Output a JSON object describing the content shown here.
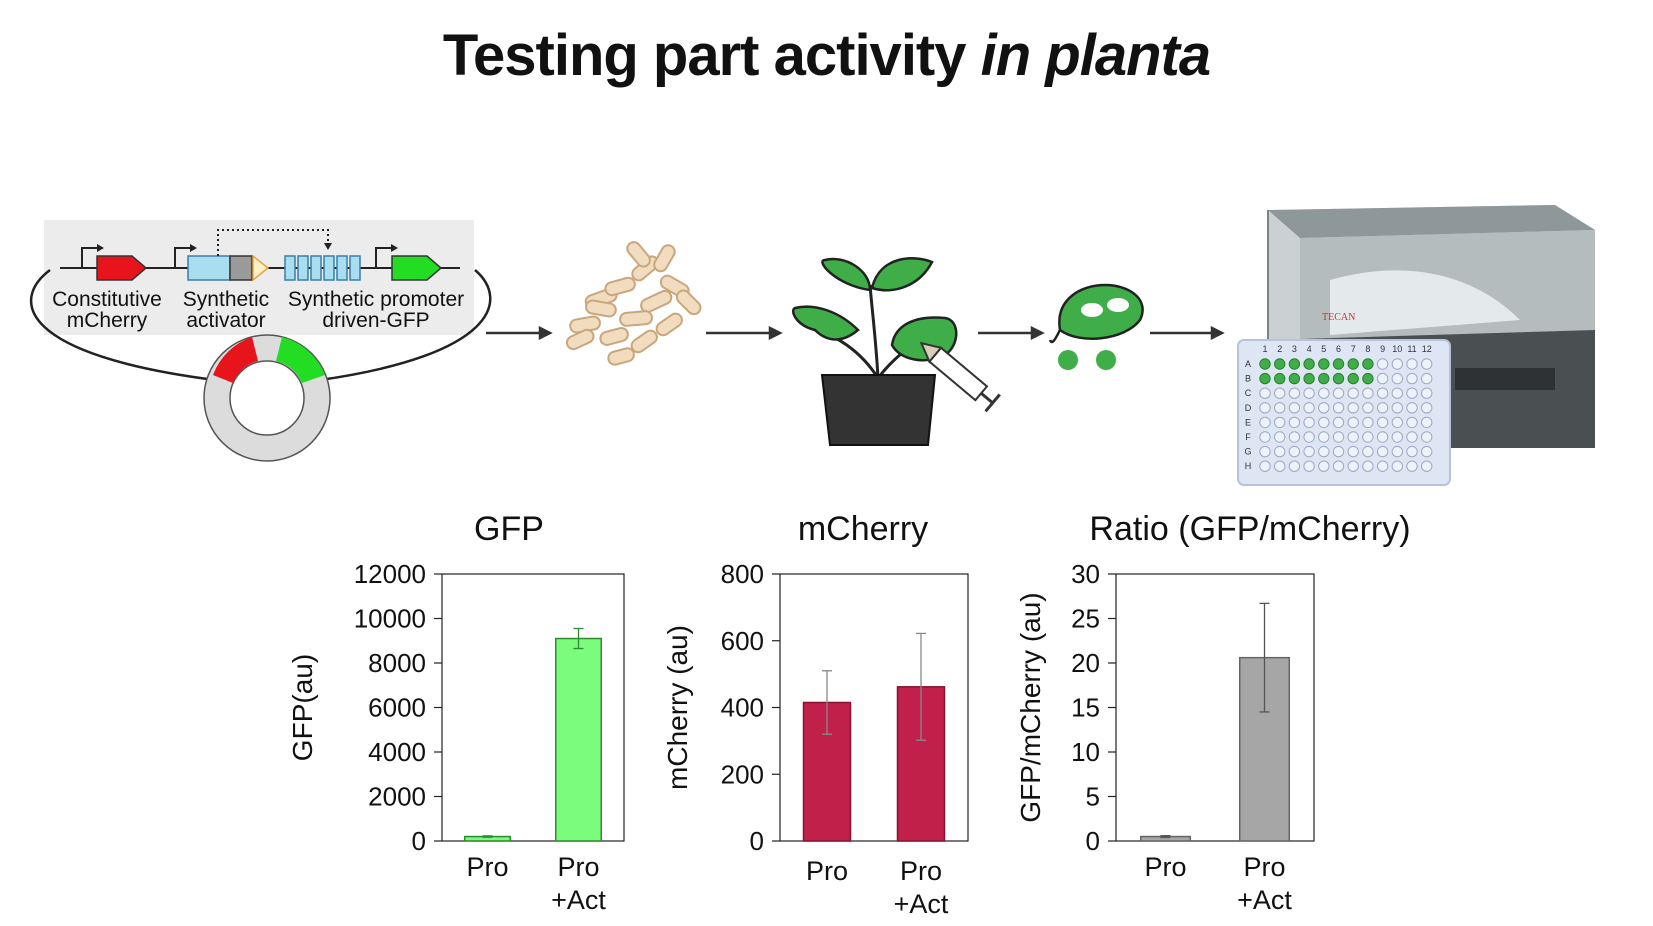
{
  "title": {
    "main": "Testing part activity ",
    "italic": "in planta"
  },
  "construct": {
    "labels": [
      {
        "line1": "Constitutive",
        "line2": "mCherry"
      },
      {
        "line1": "Synthetic",
        "line2": "activator"
      },
      {
        "line1": "Synthetic promoter",
        "line2": "driven-GFP"
      }
    ]
  },
  "instrument": {
    "brand": "TECAN",
    "plate_rows": [
      "A",
      "B",
      "C",
      "D",
      "E",
      "F",
      "G",
      "H"
    ],
    "plate_cols": [
      "1",
      "2",
      "3",
      "4",
      "5",
      "6",
      "7",
      "8",
      "9",
      "10",
      "11",
      "12"
    ],
    "filled_rows": [
      "A",
      "B"
    ],
    "filled_cols": 8
  },
  "colors": {
    "gfp_bar": "#7cfc7c",
    "gfp_edge": "#2e8b2e",
    "mcherry_bar": "#c0204a",
    "ratio_bar": "#a6a6a6",
    "plant_green": "#3fae49",
    "plasmid_red": "#e8141c",
    "plasmid_green": "#22dd22",
    "activator_blue": "#a9ddf0"
  },
  "chart_data": [
    {
      "type": "bar",
      "title": "GFP",
      "ylabel": "GFP(au)",
      "categories": [
        "Pro",
        "Pro\n+Act"
      ],
      "values": [
        200,
        9100
      ],
      "errors": [
        30,
        450
      ],
      "ylim": [
        0,
        12000
      ],
      "yticks": [
        0,
        2000,
        4000,
        6000,
        8000,
        10000,
        12000
      ],
      "color": "#7cfc7c",
      "grid": false
    },
    {
      "type": "bar",
      "title": "mCherry",
      "ylabel": "mCherry (au)",
      "categories": [
        "Pro",
        "Pro\n+Act"
      ],
      "values": [
        415,
        462
      ],
      "errors": [
        95,
        160
      ],
      "ylim": [
        0,
        800
      ],
      "yticks": [
        0,
        200,
        400,
        600,
        800
      ],
      "color": "#c0204a",
      "grid": false
    },
    {
      "type": "bar",
      "title": "Ratio (GFP/mCherry)",
      "ylabel": "GFP/mCherry (au)",
      "categories": [
        "Pro",
        "Pro\n+Act"
      ],
      "values": [
        0.5,
        20.6
      ],
      "errors": [
        0.1,
        6.1
      ],
      "ylim": [
        0,
        30
      ],
      "yticks": [
        0,
        5,
        10,
        15,
        20,
        25,
        30
      ],
      "color": "#a6a6a6",
      "grid": false
    }
  ]
}
